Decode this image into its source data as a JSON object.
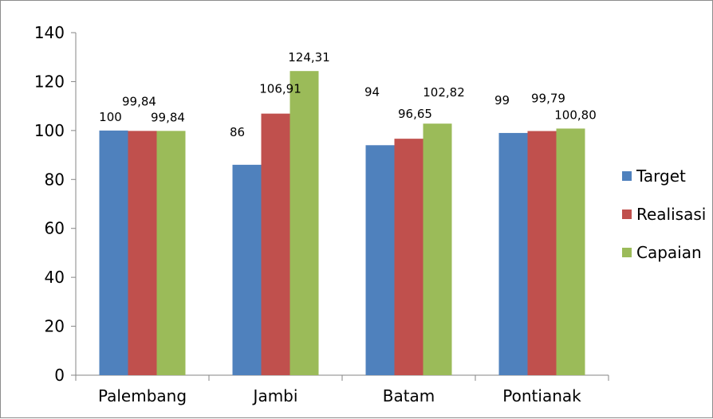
{
  "chart_data": {
    "type": "bar",
    "title": "",
    "xlabel": "",
    "ylabel": "",
    "categories": [
      "Palembang",
      "Jambi",
      "Batam",
      "Pontianak"
    ],
    "ylim": [
      0,
      140
    ],
    "yticks": [
      0,
      20,
      40,
      60,
      80,
      100,
      120,
      140
    ],
    "ytick_labels": [
      "0",
      "20",
      "40",
      "60",
      "80",
      "100",
      "120",
      "140"
    ],
    "grid": false,
    "legend_position": "right",
    "series": [
      {
        "name": "Target",
        "color": "#4F81BD",
        "values": [
          100,
          86,
          94,
          99
        ],
        "labels": [
          "100",
          "86",
          "94",
          "99"
        ]
      },
      {
        "name": "Realisasi",
        "color": "#C0504D",
        "values": [
          99.84,
          106.91,
          96.65,
          99.79
        ],
        "labels": [
          "99,84",
          "106,91",
          "96,65",
          "99,79"
        ]
      },
      {
        "name": "Capaian",
        "color": "#9BBB59",
        "values": [
          99.84,
          124.31,
          102.82,
          100.8
        ],
        "labels": [
          "99,84",
          "124,31",
          "102,82",
          "100,80"
        ]
      }
    ]
  }
}
